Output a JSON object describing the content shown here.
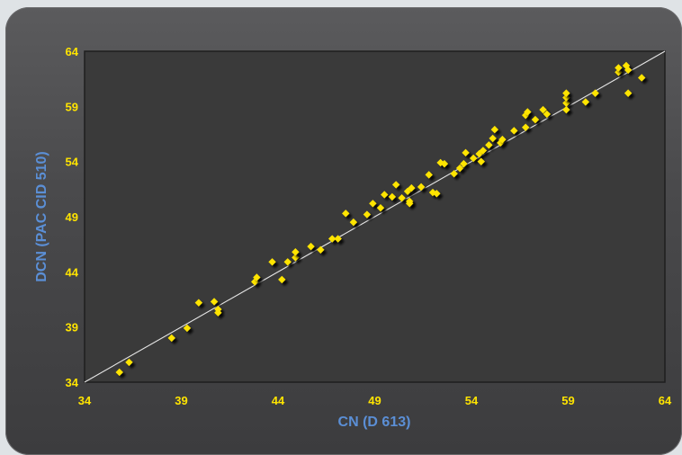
{
  "chart_data": {
    "type": "scatter",
    "xlabel": "CN (D 613)",
    "ylabel": "DCN (PAC CID 510)",
    "xlim": [
      34,
      64
    ],
    "ylim": [
      34,
      64
    ],
    "xticks": [
      "34",
      "39",
      "44",
      "49",
      "54",
      "59",
      "64"
    ],
    "yticks": [
      "34",
      "39",
      "44",
      "49",
      "54",
      "59",
      "64"
    ],
    "grid": false,
    "reference_line": {
      "from": [
        34,
        34
      ],
      "to": [
        64,
        64
      ]
    },
    "colors": {
      "marker": "#ffe400",
      "plot_bg": "#3a3a3a",
      "line": "#e6e6e6",
      "axis_title": "#5b8fd6"
    },
    "series": [
      {
        "points": [
          [
            35.8,
            34.9
          ],
          [
            36.3,
            35.8
          ],
          [
            38.5,
            38.0
          ],
          [
            39.3,
            38.9
          ],
          [
            39.9,
            41.2
          ],
          [
            40.7,
            41.3
          ],
          [
            40.9,
            40.6
          ],
          [
            40.9,
            40.3
          ],
          [
            42.8,
            43.1
          ],
          [
            42.9,
            43.5
          ],
          [
            43.7,
            44.9
          ],
          [
            44.2,
            43.3
          ],
          [
            44.5,
            44.9
          ],
          [
            44.9,
            45.3
          ],
          [
            44.9,
            45.8
          ],
          [
            45.7,
            46.3
          ],
          [
            46.2,
            46.0
          ],
          [
            46.8,
            47.0
          ],
          [
            47.1,
            47.0
          ],
          [
            47.5,
            49.3
          ],
          [
            47.9,
            48.5
          ],
          [
            48.6,
            49.2
          ],
          [
            48.9,
            50.2
          ],
          [
            49.3,
            49.8
          ],
          [
            49.5,
            51.0
          ],
          [
            49.9,
            50.8
          ],
          [
            50.1,
            51.9
          ],
          [
            50.4,
            50.7
          ],
          [
            50.7,
            51.3
          ],
          [
            50.8,
            50.4
          ],
          [
            50.8,
            50.2
          ],
          [
            50.9,
            51.6
          ],
          [
            51.4,
            51.7
          ],
          [
            51.8,
            52.8
          ],
          [
            52.0,
            51.2
          ],
          [
            52.2,
            51.1
          ],
          [
            52.4,
            53.9
          ],
          [
            52.6,
            53.8
          ],
          [
            53.1,
            52.9
          ],
          [
            53.4,
            53.4
          ],
          [
            53.6,
            53.8
          ],
          [
            53.7,
            54.8
          ],
          [
            54.1,
            54.3
          ],
          [
            54.4,
            54.7
          ],
          [
            54.5,
            54.0
          ],
          [
            54.6,
            55.0
          ],
          [
            54.9,
            55.5
          ],
          [
            55.1,
            56.1
          ],
          [
            55.2,
            56.9
          ],
          [
            55.5,
            55.7
          ],
          [
            55.6,
            56.0
          ],
          [
            56.2,
            56.8
          ],
          [
            56.8,
            57.1
          ],
          [
            56.8,
            58.2
          ],
          [
            56.9,
            58.5
          ],
          [
            57.3,
            57.8
          ],
          [
            57.7,
            58.7
          ],
          [
            57.9,
            58.3
          ],
          [
            58.9,
            59.3
          ],
          [
            58.9,
            58.7
          ],
          [
            58.9,
            59.8
          ],
          [
            58.9,
            60.2
          ],
          [
            59.9,
            59.4
          ],
          [
            60.4,
            60.2
          ],
          [
            61.6,
            62.1
          ],
          [
            61.6,
            62.5
          ],
          [
            62.0,
            62.7
          ],
          [
            62.1,
            62.3
          ],
          [
            62.1,
            60.2
          ],
          [
            62.8,
            61.6
          ]
        ]
      }
    ]
  }
}
